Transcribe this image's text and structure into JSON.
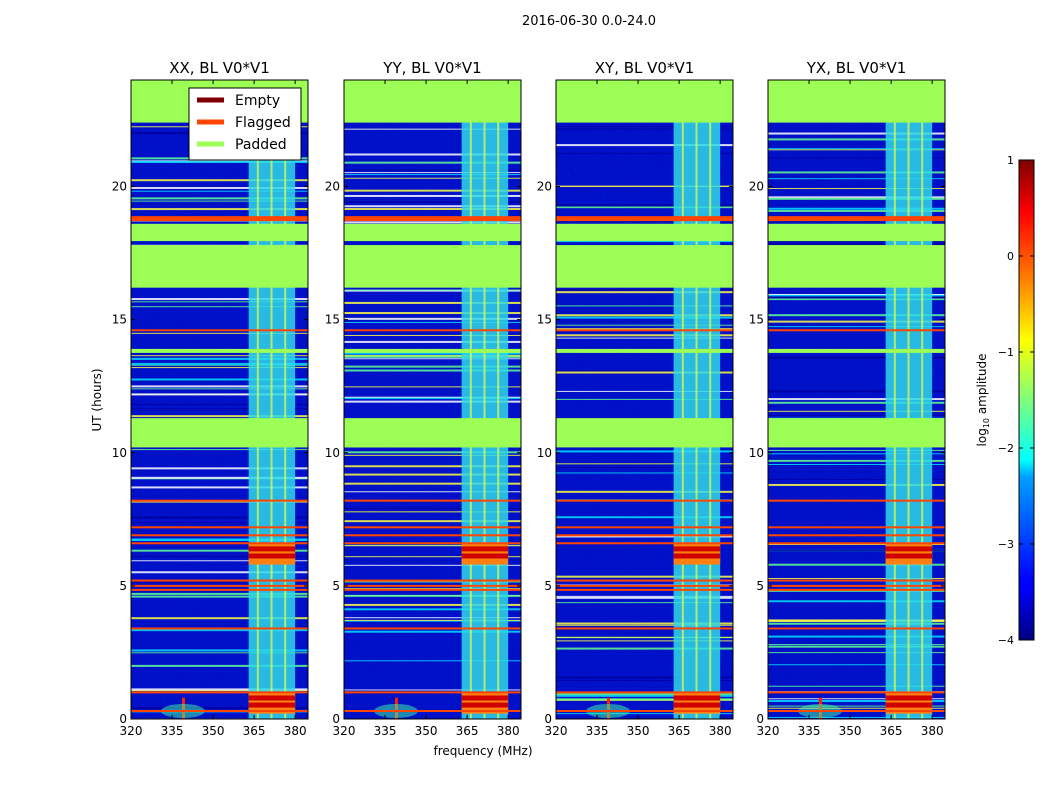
{
  "chart_data": {
    "type": "heatmap",
    "title": "2016-06-30 0.0-24.0",
    "xlabel": "frequency (MHz)",
    "ylabel": "UT (hours)",
    "xlim": [
      320,
      384.7
    ],
    "ylim": [
      0,
      24
    ],
    "xticks": [
      "320",
      "335",
      "350",
      "365",
      "380"
    ],
    "xtick_values": [
      320,
      335,
      350,
      365,
      380
    ],
    "yticks": [
      "0",
      "5",
      "10",
      "15",
      "20"
    ],
    "ytick_values": [
      0,
      5,
      10,
      15,
      20
    ],
    "panels": [
      {
        "title": "XX, BL V0*V1"
      },
      {
        "title": "YY, BL V0*V1"
      },
      {
        "title": "XY, BL V0*V1"
      },
      {
        "title": "YX, BL V0*V1"
      }
    ],
    "padded_bands_hours": [
      [
        22.4,
        24
      ],
      [
        17.95,
        18.6
      ],
      [
        16.2,
        17.8
      ],
      [
        10.2,
        11.3
      ],
      [
        13.75,
        13.9
      ]
    ],
    "flagged_rows_hours": [
      18.85,
      14.6,
      8.2,
      7.2,
      6.9,
      6.6,
      5.2,
      5.0,
      4.85,
      3.4,
      1.0,
      0.3
    ],
    "rfi_band_mhz": [
      363,
      380
    ],
    "rfi_channels_mhz": [
      366,
      371,
      376
    ],
    "hot_rows_hours": [
      [
        5.8,
        6.6
      ],
      [
        0.2,
        1.0
      ]
    ],
    "spike": {
      "freq_mhz": 339,
      "hours": [
        0,
        0.8
      ]
    },
    "legend": {
      "placement": "top-right of first panel",
      "entries": [
        {
          "label": "Empty",
          "color": "#800000"
        },
        {
          "label": "Flagged",
          "color": "#ff4500"
        },
        {
          "label": "Padded",
          "color": "#9dff55"
        }
      ]
    },
    "colorbar": {
      "label_prefix": "log",
      "label_sub": "10",
      "label_suffix": " amplitude",
      "range": [
        -4,
        1
      ],
      "ticks": [
        "−4",
        "−3",
        "−2",
        "−1",
        "0",
        "1"
      ],
      "tick_values": [
        -4,
        -3,
        -2,
        -1,
        0,
        1
      ],
      "colormap": "jet"
    }
  }
}
